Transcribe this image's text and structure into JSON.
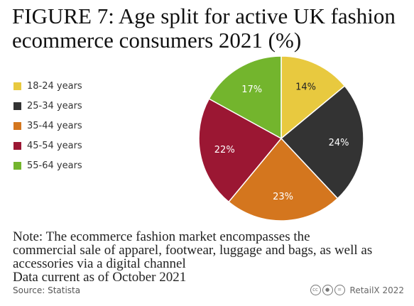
{
  "header": {
    "title": "FIGURE 7: Age split for active UK fashion ecommerce consumers 2021 (%)"
  },
  "chart_data": {
    "type": "pie",
    "title": "FIGURE 7: Age split for active UK fashion ecommerce consumers 2021 (%)",
    "categories": [
      "18-24 years",
      "25-34 years",
      "35-44 years",
      "45-54 years",
      "55-64 years"
    ],
    "values": [
      14,
      24,
      23,
      22,
      17
    ],
    "labels": [
      "14%",
      "24%",
      "23%",
      "22%",
      "17%"
    ],
    "colors": [
      "#E8C93F",
      "#333333",
      "#D4761E",
      "#9B1733",
      "#73B52D"
    ],
    "label_colors": [
      "#222222",
      "#ffffff",
      "#ffffff",
      "#ffffff",
      "#ffffff"
    ],
    "legend_position": "left"
  },
  "footer": {
    "note_lines": [
      "Note: The ecommerce fashion market encompasses the",
      "commercial sale of apparel, footwear, luggage and bags, as well as",
      "accessories via a digital channel",
      "Data current as of October 2021"
    ],
    "source": "Source: Statista",
    "brand": "RetailX 2022",
    "license_icons": [
      "cc-icon",
      "attribution-icon",
      "noderivatives-icon"
    ]
  }
}
